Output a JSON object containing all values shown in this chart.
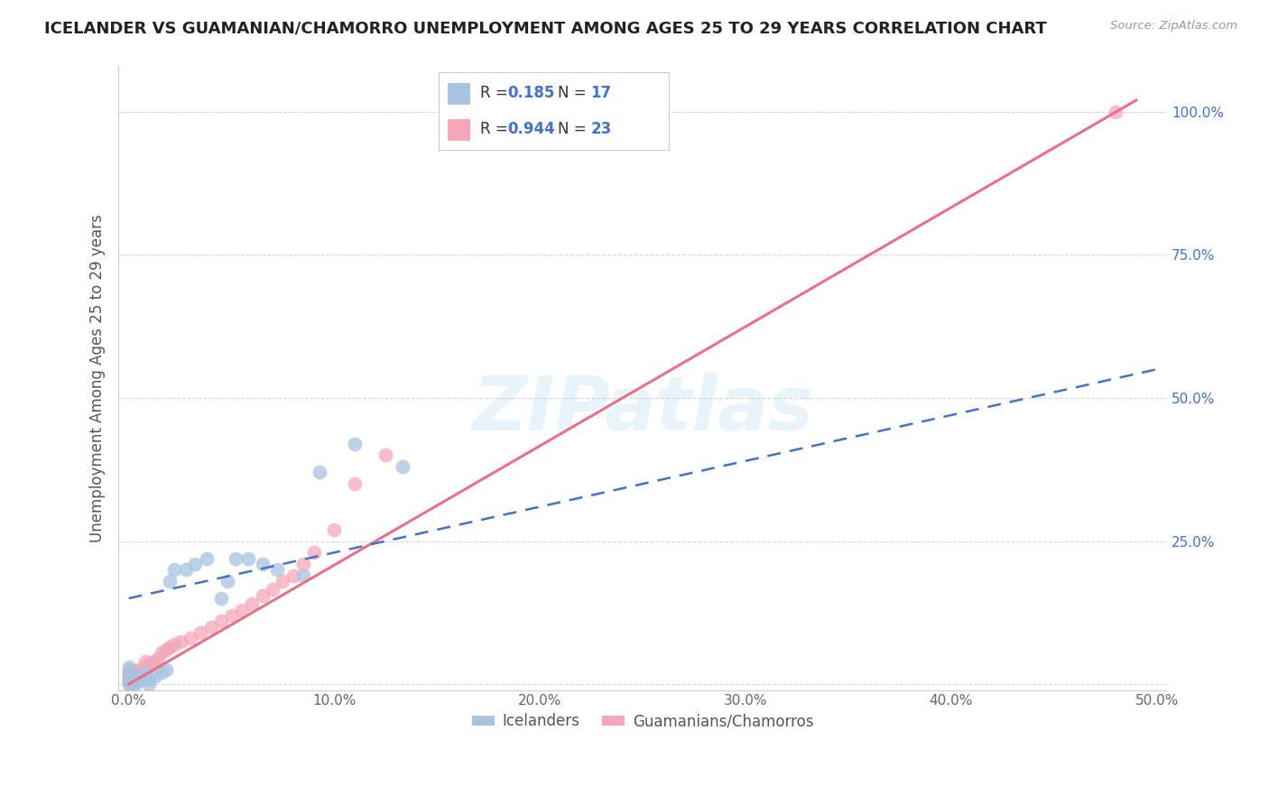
{
  "title": "ICELANDER VS GUAMANIAN/CHAMORRO UNEMPLOYMENT AMONG AGES 25 TO 29 YEARS CORRELATION CHART",
  "source": "Source: ZipAtlas.com",
  "ylabel": "Unemployment Among Ages 25 to 29 years",
  "x_ticks": [
    0.0,
    0.1,
    0.2,
    0.3,
    0.4,
    0.5
  ],
  "x_tick_labels": [
    "0.0%",
    "10.0%",
    "20.0%",
    "30.0%",
    "40.0%",
    "50.0%"
  ],
  "y_ticks": [
    0.0,
    0.25,
    0.5,
    0.75,
    1.0
  ],
  "y_tick_labels": [
    "",
    "25.0%",
    "50.0%",
    "75.0%",
    "100.0%"
  ],
  "xlim": [
    -0.005,
    0.505
  ],
  "ylim": [
    -0.01,
    1.08
  ],
  "legend_labels": [
    "Icelanders",
    "Guamanians/Chamorros"
  ],
  "r_icelander": 0.185,
  "n_icelander": 17,
  "r_guamanian": 0.944,
  "n_guamanian": 23,
  "icelander_color": "#a8c4e0",
  "guamanian_color": "#f4a7b9",
  "icelander_line_color": "#4472c4",
  "icelander_line_color2": "#a8c4e0",
  "guamanian_line_color": "#e8708a",
  "watermark": "ZIPatlas",
  "icelander_x": [
    0.0,
    0.0,
    0.0,
    0.0,
    0.0,
    0.003,
    0.003,
    0.005,
    0.005,
    0.008,
    0.01,
    0.01,
    0.013,
    0.016,
    0.018,
    0.02,
    0.022,
    0.028,
    0.032,
    0.038,
    0.045,
    0.048,
    0.052,
    0.058,
    0.065,
    0.072,
    0.085,
    0.093,
    0.11,
    0.133
  ],
  "icelander_y": [
    0.0,
    0.005,
    0.01,
    0.02,
    0.03,
    0.0,
    0.01,
    0.005,
    0.015,
    0.02,
    0.0,
    0.01,
    0.015,
    0.02,
    0.025,
    0.18,
    0.2,
    0.2,
    0.21,
    0.22,
    0.15,
    0.18,
    0.22,
    0.22,
    0.21,
    0.2,
    0.19,
    0.37,
    0.42,
    0.38
  ],
  "guamanian_x": [
    0.0,
    0.0,
    0.0,
    0.0,
    0.0,
    0.0,
    0.002,
    0.003,
    0.005,
    0.005,
    0.007,
    0.008,
    0.01,
    0.012,
    0.014,
    0.016,
    0.018,
    0.02,
    0.022,
    0.025,
    0.03,
    0.035,
    0.04,
    0.045,
    0.05,
    0.055,
    0.06,
    0.065,
    0.07,
    0.075,
    0.08,
    0.085,
    0.09,
    0.1,
    0.11,
    0.125,
    0.48
  ],
  "guamanian_y": [
    0.0,
    0.005,
    0.01,
    0.015,
    0.02,
    0.025,
    0.005,
    0.01,
    0.02,
    0.025,
    0.03,
    0.04,
    0.035,
    0.04,
    0.045,
    0.055,
    0.06,
    0.065,
    0.07,
    0.075,
    0.08,
    0.09,
    0.1,
    0.11,
    0.12,
    0.13,
    0.14,
    0.155,
    0.165,
    0.18,
    0.19,
    0.21,
    0.23,
    0.27,
    0.35,
    0.4,
    1.0
  ],
  "ice_line_x0": 0.0,
  "ice_line_y0": 0.15,
  "ice_line_x1": 0.5,
  "ice_line_y1": 0.55,
  "gua_line_x0": 0.0,
  "gua_line_y0": 0.0,
  "gua_line_x1": 0.49,
  "gua_line_y1": 1.02
}
